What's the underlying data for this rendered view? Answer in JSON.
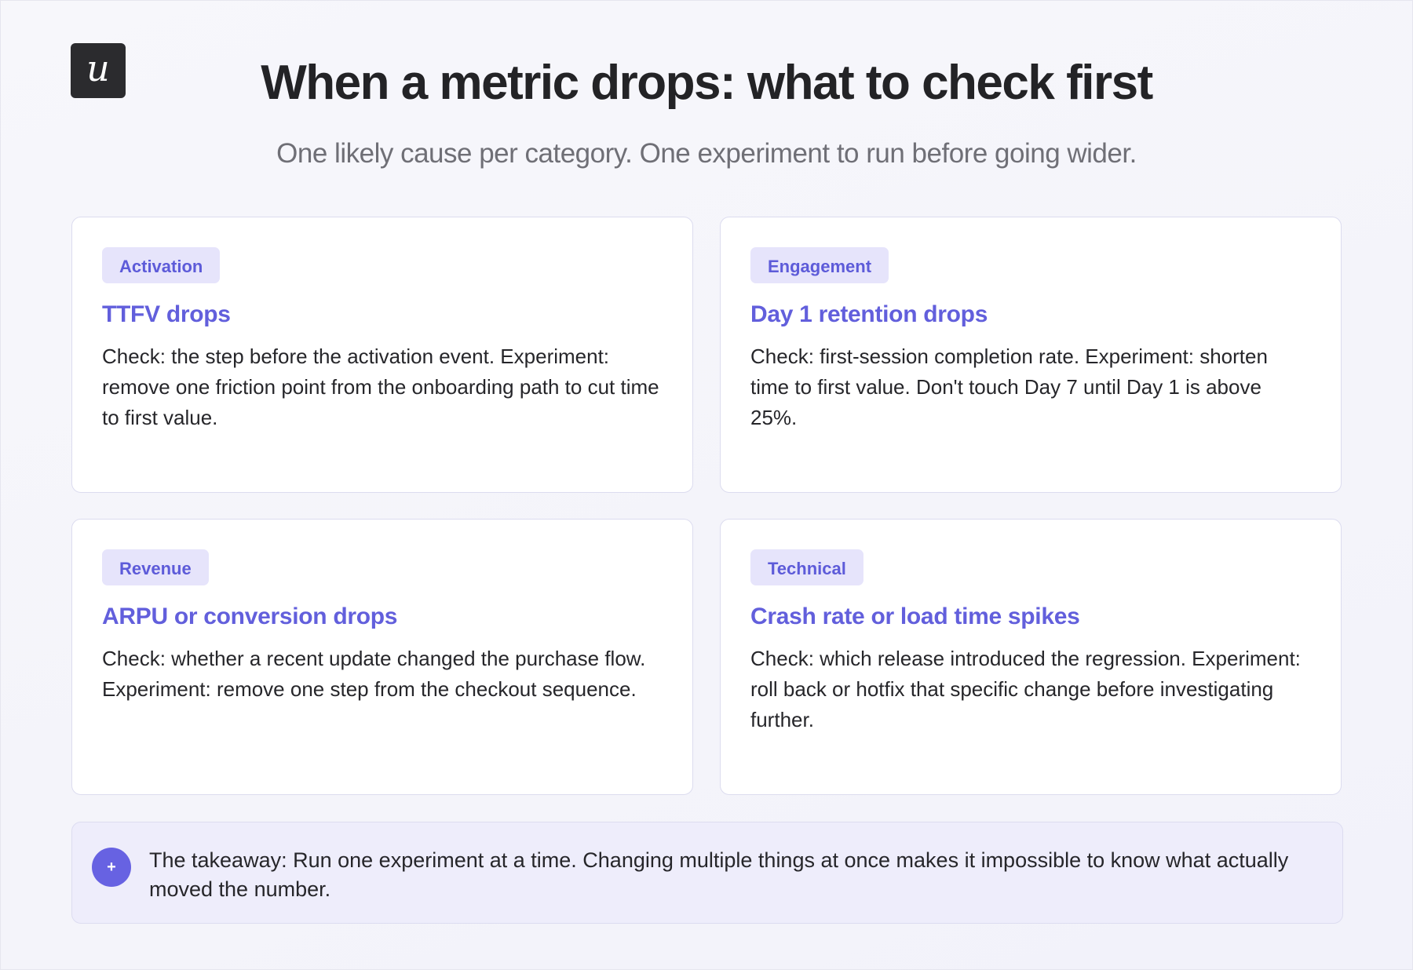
{
  "logo": {
    "glyph": "u"
  },
  "title": "When a metric drops: what to check first",
  "subtitle": "One likely cause per category. One experiment to run before going wider.",
  "cards": [
    {
      "category": "Activation",
      "heading": "TTFV drops",
      "body": "Check: the step before the activation event. Experiment: remove one friction point from the onboarding path to cut time to first value."
    },
    {
      "category": "Engagement",
      "heading": "Day 1 retention drops",
      "body": "Check: first-session completion rate. Experiment: shorten time to first value. Don't touch Day 7 until Day 1 is above 25%."
    },
    {
      "category": "Revenue",
      "heading": "ARPU or conversion drops",
      "body": "Check: whether a recent update changed the purchase flow. Experiment: remove one step from the checkout sequence."
    },
    {
      "category": "Technical",
      "heading": "Crash rate or load time spikes",
      "body": "Check: which release introduced the regression. Experiment: roll back or hotfix that specific change before investigating further."
    }
  ],
  "takeaway": {
    "icon": "+",
    "text": "The takeaway: Run one experiment at a time. Changing multiple things at once makes it impossible to know what actually moved the number."
  },
  "colors": {
    "accent": "#625fdc",
    "badge_bg": "#e6e4fb",
    "logo_bg": "#2b2b2e"
  }
}
